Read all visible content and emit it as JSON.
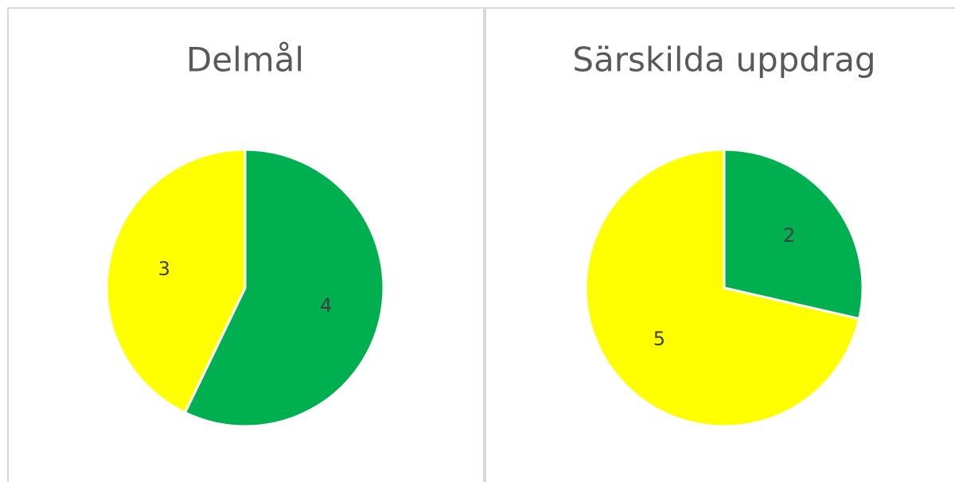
{
  "chart_data": [
    {
      "type": "pie",
      "title": "Delmål",
      "values": [
        4,
        3
      ],
      "colors": [
        "#00b050",
        "#ffff00"
      ]
    },
    {
      "type": "pie",
      "title": "Särskilda uppdrag",
      "values": [
        2,
        5
      ],
      "colors": [
        "#00b050",
        "#ffff00"
      ]
    }
  ]
}
